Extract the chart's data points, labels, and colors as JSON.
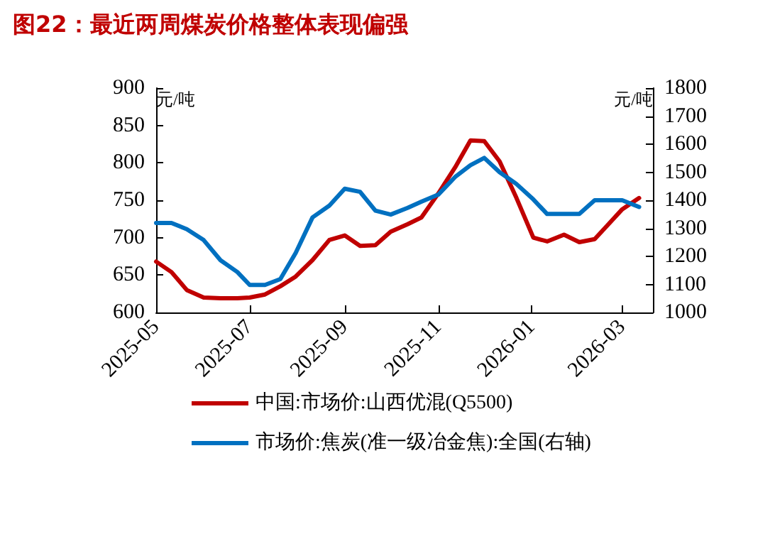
{
  "chart_data": {
    "type": "line",
    "title": "图22：最近两周煤炭价格整体表现偏强",
    "ylabel": "元/吨",
    "y2label": "元/吨",
    "x": [
      "2025-05-01",
      "2025-05-11",
      "2025-05-21",
      "2025-06-01",
      "2025-06-12",
      "2025-06-23",
      "2025-07-01",
      "2025-07-11",
      "2025-07-21",
      "2025-07-31",
      "2025-08-11",
      "2025-08-22",
      "2025-09-01",
      "2025-09-11",
      "2025-09-21",
      "2025-10-01",
      "2025-10-12",
      "2025-10-21",
      "2025-11-01",
      "2025-11-12",
      "2025-11-22",
      "2025-12-01",
      "2025-12-11",
      "2025-12-22",
      "2026-01-02",
      "2026-01-11",
      "2026-01-22",
      "2026-02-01",
      "2026-02-11",
      "2026-02-20",
      "2026-03-01",
      "2026-03-12"
    ],
    "series": [
      {
        "name": "中国:市场价:山西优混(Q5500)",
        "color": "#c00000",
        "values": [
          668,
          654,
          630,
          620,
          619,
          619,
          620,
          624,
          635,
          648,
          670,
          697,
          703,
          689,
          690,
          708,
          718,
          727,
          759,
          794,
          830,
          829,
          802,
          753,
          700,
          695,
          704,
          694,
          698,
          718,
          738,
          753
        ]
      },
      {
        "name": "市场价:焦炭(准一级冶金焦):全国(右轴)",
        "color": "#0070c0",
        "axis": "y2",
        "values": [
          1319,
          1319,
          1297,
          1258,
          1186,
          1144,
          1098,
          1098,
          1119,
          1212,
          1339,
          1381,
          1441,
          1430,
          1363,
          1349,
          1373,
          1395,
          1420,
          1483,
          1525,
          1551,
          1500,
          1458,
          1403,
          1351,
          1351,
          1351,
          1400,
          1400,
          1400,
          1376
        ]
      }
    ],
    "xlim": [
      "2025-05-01",
      "2026-03-21"
    ],
    "xticks": [
      "2025-05",
      "2025-07",
      "2025-09",
      "2025-11",
      "2026-01",
      "2026-03"
    ],
    "ylim": [
      600,
      900
    ],
    "yticks": [
      600,
      650,
      700,
      750,
      800,
      850,
      900
    ],
    "y2lim": [
      1000,
      1800
    ],
    "y2ticks": [
      1000,
      1100,
      1200,
      1300,
      1400,
      1500,
      1600,
      1700,
      1800
    ],
    "legend": "bottom",
    "grid": false,
    "marker": "none",
    "line_style": "solid"
  }
}
